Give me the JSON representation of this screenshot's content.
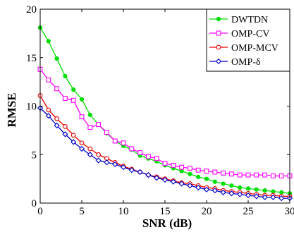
{
  "chart_data": {
    "type": "line",
    "title": "",
    "xlabel": "SNR (dB)",
    "ylabel": "RMSE",
    "xlim": [
      0,
      30
    ],
    "ylim": [
      0,
      20
    ],
    "xticks": [
      0,
      5,
      10,
      15,
      20,
      25,
      30
    ],
    "yticks": [
      0,
      5,
      10,
      15,
      20
    ],
    "grid": false,
    "legend_position": "top-right",
    "x": [
      0,
      1,
      2,
      3,
      4,
      5,
      6,
      7,
      8,
      9,
      10,
      11,
      12,
      13,
      14,
      15,
      16,
      17,
      18,
      19,
      20,
      21,
      22,
      23,
      24,
      25,
      26,
      27,
      28,
      29,
      30
    ],
    "series": [
      {
        "name": "DWTDN",
        "color": "#00dd00",
        "marker": "filled-circle",
        "values": [
          18.1,
          16.7,
          14.9,
          13.1,
          11.7,
          10.7,
          9.1,
          8.1,
          7.2,
          6.4,
          5.9,
          5.5,
          4.9,
          4.6,
          4.3,
          3.9,
          3.6,
          3.3,
          3.0,
          2.7,
          2.5,
          2.2,
          2.0,
          1.8,
          1.6,
          1.5,
          1.4,
          1.3,
          1.2,
          1.1,
          1.0
        ]
      },
      {
        "name": "OMP-CV",
        "color": "#ff00ff",
        "marker": "open-square",
        "values": [
          13.8,
          12.7,
          11.8,
          10.8,
          10.6,
          8.9,
          7.8,
          8.1,
          7.3,
          6.4,
          6.2,
          5.6,
          5.2,
          4.8,
          4.6,
          4.1,
          3.9,
          3.7,
          3.6,
          3.4,
          3.3,
          3.2,
          3.1,
          3.0,
          2.9,
          2.9,
          2.9,
          2.9,
          2.8,
          2.8,
          2.8
        ]
      },
      {
        "name": "OMP-MCV",
        "color": "#ee0000",
        "marker": "open-circle",
        "values": [
          11.1,
          9.6,
          8.7,
          7.9,
          7.0,
          6.2,
          5.6,
          5.0,
          4.6,
          4.2,
          3.8,
          3.5,
          3.2,
          2.9,
          2.7,
          2.5,
          2.3,
          2.1,
          2.0,
          1.8,
          1.6,
          1.5,
          1.3,
          1.2,
          1.1,
          1.0,
          0.9,
          0.8,
          0.8,
          0.7,
          0.7
        ]
      },
      {
        "name": "OMP-δ",
        "color": "#0000cc",
        "marker": "open-diamond",
        "values": [
          9.8,
          9.0,
          8.0,
          7.1,
          6.3,
          5.6,
          5.0,
          4.4,
          4.2,
          4.0,
          3.7,
          3.4,
          3.2,
          2.9,
          2.6,
          2.4,
          2.2,
          2.0,
          1.8,
          1.6,
          1.4,
          1.3,
          1.1,
          1.0,
          0.9,
          0.8,
          0.7,
          0.6,
          0.6,
          0.5,
          0.5
        ]
      }
    ]
  }
}
